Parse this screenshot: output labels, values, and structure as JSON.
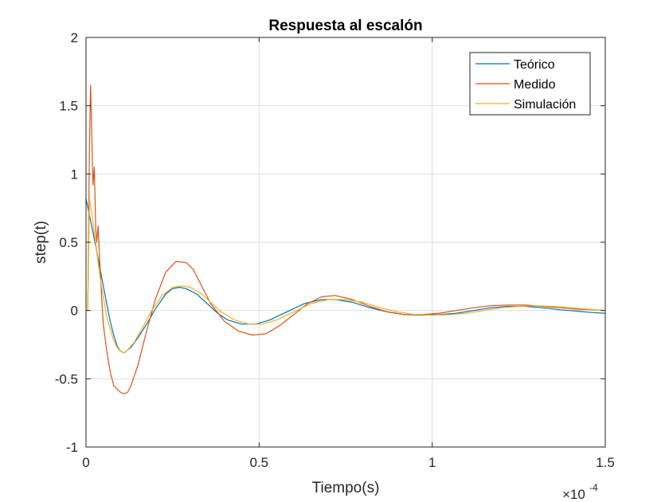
{
  "chart_data": {
    "type": "line",
    "title": "Respuesta al escalón",
    "xlabel": "Tiempo(s)",
    "ylabel": "step(t)",
    "xlim": [
      0,
      0.00015
    ],
    "ylim": [
      -1,
      2
    ],
    "x_exponent_label": "×10",
    "x_exponent_power": "-4",
    "x_ticks": [
      0,
      5e-05,
      0.0001,
      0.00015
    ],
    "x_tick_labels": [
      "0",
      "0.5",
      "1",
      "1.5"
    ],
    "y_ticks": [
      -1,
      -0.5,
      0,
      0.5,
      1,
      1.5,
      2
    ],
    "y_tick_labels": [
      "-1",
      "-0.5",
      "0",
      "0.5",
      "1",
      "1.5",
      "2"
    ],
    "grid": true,
    "legend_position": "top-right",
    "series": [
      {
        "name": "Teórico",
        "color": "#0072BD",
        "x": [
          0,
          1e-06,
          3e-06,
          5e-06,
          7e-06,
          8e-06,
          9e-06,
          1e-05,
          1.1e-05,
          1.3e-05,
          1.5e-05,
          1.8e-05,
          2e-05,
          2.3e-05,
          2.5e-05,
          2.7e-05,
          2.9e-05,
          3.2e-05,
          3.5e-05,
          3.8e-05,
          4.1e-05,
          4.5e-05,
          4.9e-05,
          5.3e-05,
          5.8e-05,
          6.3e-05,
          6.8e-05,
          7.2e-05,
          7.7e-05,
          8.2e-05,
          8.7e-05,
          9.2e-05,
          9.7e-05,
          0.000102,
          0.000107,
          0.000112,
          0.000117,
          0.000122,
          0.000127,
          0.000132,
          0.000137,
          0.000142,
          0.000146,
          0.00015
        ],
        "values": [
          0.82,
          0.7,
          0.45,
          0.18,
          -0.08,
          -0.18,
          -0.26,
          -0.3,
          -0.31,
          -0.27,
          -0.2,
          -0.08,
          0.01,
          0.12,
          0.16,
          0.17,
          0.16,
          0.12,
          0.05,
          -0.02,
          -0.07,
          -0.1,
          -0.1,
          -0.07,
          -0.01,
          0.05,
          0.08,
          0.08,
          0.06,
          0.02,
          -0.01,
          -0.03,
          -0.035,
          -0.03,
          -0.02,
          0.0,
          0.02,
          0.03,
          0.03,
          0.02,
          0.005,
          -0.005,
          -0.015,
          -0.02
        ]
      },
      {
        "name": "Medido",
        "color": "#D95319",
        "x": [
          0,
          5e-07,
          1e-06,
          1.3e-06,
          1.6e-06,
          2e-06,
          2.4e-06,
          2.8e-06,
          3.1e-06,
          3.5e-06,
          4e-06,
          4.5e-06,
          5e-06,
          6e-06,
          7e-06,
          8e-06,
          1e-05,
          1.1e-05,
          1.2e-05,
          1.3e-05,
          1.5e-05,
          1.7e-05,
          2e-05,
          2.3e-05,
          2.6e-05,
          2.9e-05,
          3.1e-05,
          3.3e-05,
          3.6e-05,
          4e-05,
          4.4e-05,
          4.8e-05,
          5.2e-05,
          5.6e-05,
          6e-05,
          6.4e-05,
          6.8e-05,
          7.2e-05,
          7.7e-05,
          8.2e-05,
          8.7e-05,
          9.2e-05,
          9.7e-05,
          0.000102,
          0.000107,
          0.000112,
          0.000117,
          0.000122,
          0.000127,
          0.000132,
          0.000137,
          0.000142,
          0.000146,
          0.00015
        ],
        "values": [
          0.0,
          0.0,
          1.2,
          1.65,
          1.35,
          0.92,
          1.05,
          0.6,
          0.5,
          0.62,
          0.35,
          0.1,
          -0.1,
          -0.3,
          -0.45,
          -0.55,
          -0.6,
          -0.61,
          -0.6,
          -0.55,
          -0.4,
          -0.2,
          0.08,
          0.28,
          0.36,
          0.35,
          0.3,
          0.2,
          0.05,
          -0.08,
          -0.15,
          -0.18,
          -0.17,
          -0.11,
          -0.03,
          0.05,
          0.1,
          0.11,
          0.08,
          0.03,
          -0.01,
          -0.03,
          -0.03,
          -0.02,
          0.0,
          0.02,
          0.035,
          0.04,
          0.04,
          0.03,
          0.02,
          0.01,
          0.005,
          0.0
        ]
      },
      {
        "name": "Simulación",
        "color": "#EDB120",
        "x": [
          0,
          5e-07,
          1e-06,
          2e-06,
          4e-06,
          6e-06,
          8e-06,
          9e-06,
          1e-05,
          1.1e-05,
          1.2e-05,
          1.4e-05,
          1.6e-05,
          1.9e-05,
          2.2e-05,
          2.5e-05,
          2.8e-05,
          3e-05,
          3.3e-05,
          3.6e-05,
          3.9e-05,
          4.3e-05,
          4.7e-05,
          5.1e-05,
          5.5e-05,
          6e-05,
          6.5e-05,
          7e-05,
          7.5e-05,
          8e-05,
          8.5e-05,
          9e-05,
          9.5e-05,
          0.0001,
          0.000105,
          0.00011,
          0.000115,
          0.00012,
          0.000125,
          0.00013,
          0.000135,
          0.00014,
          0.000145,
          0.00015
        ],
        "values": [
          0.0,
          0.0,
          0.82,
          0.65,
          0.25,
          -0.05,
          -0.22,
          -0.27,
          -0.3,
          -0.31,
          -0.29,
          -0.23,
          -0.14,
          0.0,
          0.11,
          0.17,
          0.18,
          0.17,
          0.13,
          0.06,
          -0.01,
          -0.07,
          -0.1,
          -0.1,
          -0.07,
          -0.01,
          0.05,
          0.08,
          0.08,
          0.06,
          0.02,
          -0.01,
          -0.03,
          -0.035,
          -0.03,
          -0.02,
          0.0,
          0.02,
          0.03,
          0.035,
          0.03,
          0.02,
          0.01,
          0.0
        ]
      }
    ]
  }
}
